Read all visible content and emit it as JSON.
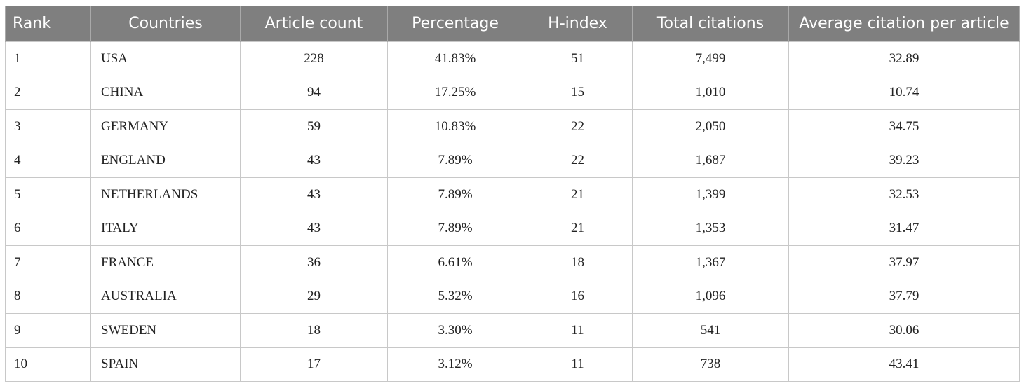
{
  "table": {
    "headers": [
      "Rank",
      "Countries",
      "Article count",
      "Percentage",
      "H-index",
      "Total citations",
      "Average citation per article"
    ],
    "rows": [
      [
        "1",
        "USA",
        "228",
        "41.83%",
        "51",
        "7,499",
        "32.89"
      ],
      [
        "2",
        "CHINA",
        "94",
        "17.25%",
        "15",
        "1,010",
        "10.74"
      ],
      [
        "3",
        "GERMANY",
        "59",
        "10.83%",
        "22",
        "2,050",
        "34.75"
      ],
      [
        "4",
        "ENGLAND",
        "43",
        "7.89%",
        "22",
        "1,687",
        "39.23"
      ],
      [
        "5",
        "NETHERLANDS",
        "43",
        "7.89%",
        "21",
        "1,399",
        "32.53"
      ],
      [
        "6",
        "ITALY",
        "43",
        "7.89%",
        "21",
        "1,353",
        "31.47"
      ],
      [
        "7",
        "FRANCE",
        "36",
        "6.61%",
        "18",
        "1,367",
        "37.97"
      ],
      [
        "8",
        "AUSTRALIA",
        "29",
        "5.32%",
        "16",
        "1,096",
        "37.79"
      ],
      [
        "9",
        "SWEDEN",
        "18",
        "3.30%",
        "11",
        "541",
        "30.06"
      ],
      [
        "10",
        "SPAIN",
        "17",
        "3.12%",
        "11",
        "738",
        "43.41"
      ]
    ]
  },
  "colors": {
    "header_bg": "#7f7f7f",
    "header_text": "#ffffff",
    "border": "#c8c8c8"
  }
}
